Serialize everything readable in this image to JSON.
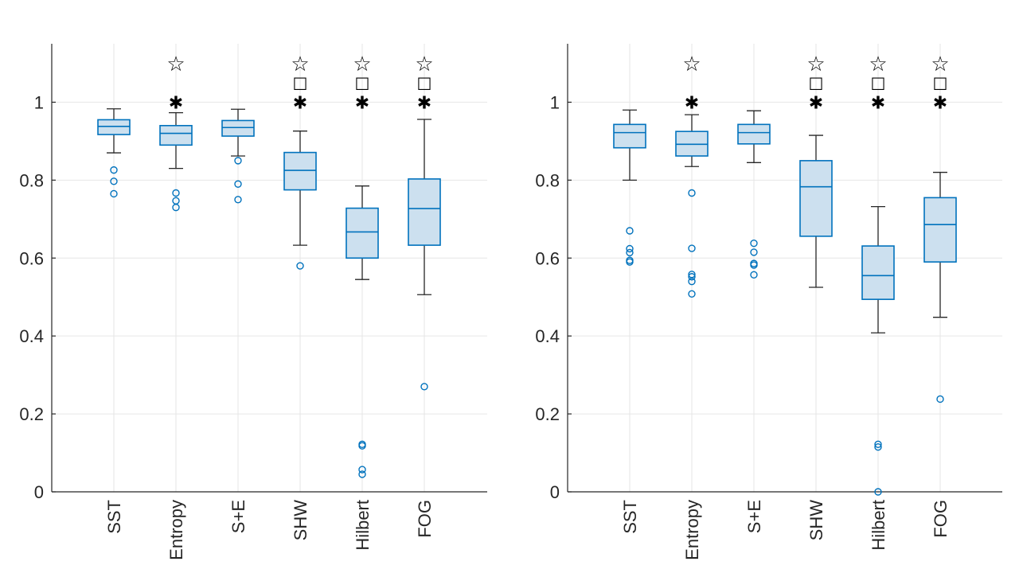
{
  "colors": {
    "box_fill": "#cce0ef",
    "box_edge": "#0072bd",
    "whisker": "#262626",
    "grid": "#e6e6e6",
    "marker": "#000000"
  },
  "chart_data": [
    {
      "type": "box",
      "title": "",
      "xlabel": "",
      "ylabel": "",
      "ylim": [
        0,
        1.15
      ],
      "yticks": [
        0,
        0.2,
        0.4,
        0.6,
        0.8,
        1
      ],
      "ytick_labels": [
        "0",
        "0.2",
        "0.4",
        "0.6",
        "0.8",
        "1"
      ],
      "grid": true,
      "categories": [
        "SST",
        "Entropy",
        "S+E",
        "SHW",
        "Hilbert",
        "FOG"
      ],
      "boxes": [
        {
          "whisker_low": 0.87,
          "q1": 0.917,
          "median": 0.938,
          "q3": 0.955,
          "whisker_high": 0.983,
          "outliers": [
            0.826,
            0.797,
            0.765
          ]
        },
        {
          "whisker_low": 0.83,
          "q1": 0.89,
          "median": 0.92,
          "q3": 0.94,
          "whisker_high": 0.973,
          "outliers": [
            0.767,
            0.747,
            0.73
          ]
        },
        {
          "whisker_low": 0.862,
          "q1": 0.913,
          "median": 0.935,
          "q3": 0.953,
          "whisker_high": 0.982,
          "outliers": [
            0.85,
            0.79,
            0.75
          ]
        },
        {
          "whisker_low": 0.633,
          "q1": 0.775,
          "median": 0.825,
          "q3": 0.871,
          "whisker_high": 0.926,
          "outliers": [
            0.58
          ]
        },
        {
          "whisker_low": 0.545,
          "q1": 0.6,
          "median": 0.667,
          "q3": 0.728,
          "whisker_high": 0.785,
          "outliers": [
            0.122,
            0.118,
            0.057,
            0.045
          ]
        },
        {
          "whisker_low": 0.506,
          "q1": 0.633,
          "median": 0.727,
          "q3": 0.803,
          "whisker_high": 0.956,
          "outliers": [
            0.27
          ]
        }
      ],
      "significance_markers": [
        {
          "category": "Entropy",
          "symbols": [
            "☆",
            "✱"
          ]
        },
        {
          "category": "SHW",
          "symbols": [
            "☆",
            "□",
            "✱"
          ]
        },
        {
          "category": "Hilbert",
          "symbols": [
            "☆",
            "□",
            "✱"
          ]
        },
        {
          "category": "FOG",
          "symbols": [
            "☆",
            "□",
            "✱"
          ]
        }
      ]
    },
    {
      "type": "box",
      "title": "",
      "xlabel": "",
      "ylabel": "",
      "ylim": [
        0,
        1.15
      ],
      "yticks": [
        0,
        0.2,
        0.4,
        0.6,
        0.8,
        1
      ],
      "ytick_labels": [
        "0",
        "0.2",
        "0.4",
        "0.6",
        "0.8",
        "1"
      ],
      "grid": true,
      "categories": [
        "SST",
        "Entropy",
        "S+E",
        "SHW",
        "Hilbert",
        "FOG"
      ],
      "boxes": [
        {
          "whisker_low": 0.8,
          "q1": 0.883,
          "median": 0.922,
          "q3": 0.943,
          "whisker_high": 0.98,
          "outliers": [
            0.67,
            0.624,
            0.614,
            0.594,
            0.59
          ]
        },
        {
          "whisker_low": 0.835,
          "q1": 0.862,
          "median": 0.892,
          "q3": 0.925,
          "whisker_high": 0.968,
          "outliers": [
            0.767,
            0.625,
            0.558,
            0.552,
            0.54,
            0.508
          ]
        },
        {
          "whisker_low": 0.845,
          "q1": 0.893,
          "median": 0.922,
          "q3": 0.943,
          "whisker_high": 0.978,
          "outliers": [
            0.638,
            0.615,
            0.586,
            0.582,
            0.557
          ]
        },
        {
          "whisker_low": 0.525,
          "q1": 0.656,
          "median": 0.783,
          "q3": 0.85,
          "whisker_high": 0.915,
          "outliers": []
        },
        {
          "whisker_low": 0.408,
          "q1": 0.494,
          "median": 0.555,
          "q3": 0.631,
          "whisker_high": 0.732,
          "outliers": [
            0.122,
            0.115,
            0.0
          ]
        },
        {
          "whisker_low": 0.448,
          "q1": 0.59,
          "median": 0.686,
          "q3": 0.755,
          "whisker_high": 0.82,
          "outliers": [
            0.238
          ]
        }
      ],
      "significance_markers": [
        {
          "category": "Entropy",
          "symbols": [
            "☆",
            "✱"
          ]
        },
        {
          "category": "SHW",
          "symbols": [
            "☆",
            "□",
            "✱"
          ]
        },
        {
          "category": "Hilbert",
          "symbols": [
            "☆",
            "□",
            "✱"
          ]
        },
        {
          "category": "FOG",
          "symbols": [
            "☆",
            "□",
            "✱"
          ]
        }
      ]
    }
  ]
}
